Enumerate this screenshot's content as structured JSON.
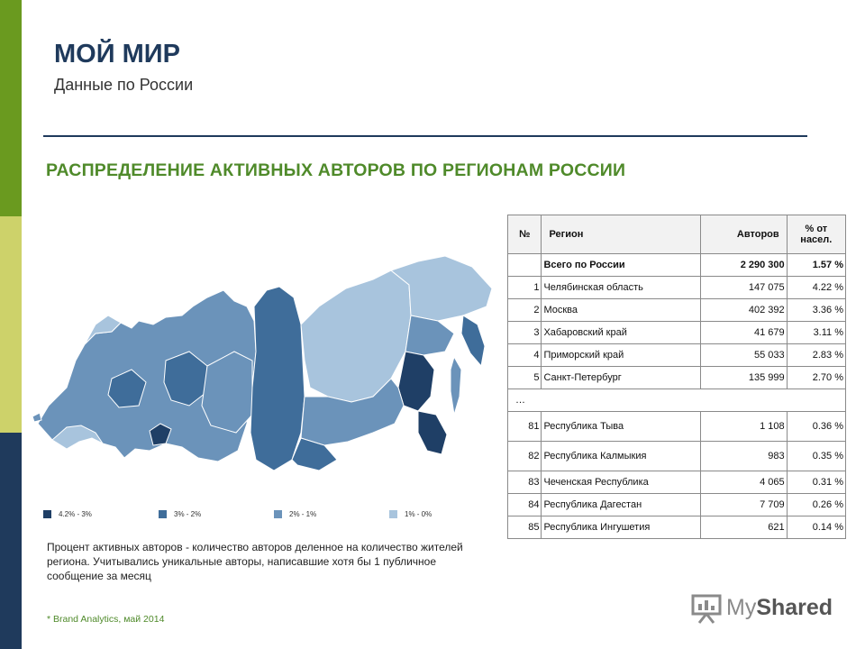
{
  "header": {
    "title": "МОЙ МИР",
    "subtitle": "Данные по России",
    "section_title": "РАСПРЕДЕЛЕНИЕ АКТИВНЫХ АВТОРОВ ПО РЕГИОНАМ РОССИИ"
  },
  "colors": {
    "accent_green": "#6a9a1f",
    "navy": "#1f3a5c",
    "shade_1": "#1f3f66",
    "shade_2": "#3f6d9a",
    "shade_3": "#6b93ba",
    "shade_4": "#a8c4dd"
  },
  "legend": [
    {
      "label": "4.2% - 3%",
      "color": "#1f3f66"
    },
    {
      "label": "3% - 2%",
      "color": "#3f6d9a"
    },
    {
      "label": "2% - 1%",
      "color": "#6b93ba"
    },
    {
      "label": "1% - 0%",
      "color": "#a8c4dd"
    }
  ],
  "table": {
    "headers": {
      "num": "№",
      "region": "Регион",
      "authors": "Авторов",
      "percent": "% от насел."
    },
    "total": {
      "num": "",
      "region": "Всего по России",
      "authors": "2 290 300",
      "percent": "1.57 %"
    },
    "top_rows": [
      {
        "num": "1",
        "region": "Челябинская область",
        "authors": "147 075",
        "percent": "4.22 %"
      },
      {
        "num": "2",
        "region": "Москва",
        "authors": "402 392",
        "percent": "3.36 %"
      },
      {
        "num": "3",
        "region": "Хабаровский край",
        "authors": "41 679",
        "percent": "3.11 %"
      },
      {
        "num": "4",
        "region": "Приморский край",
        "authors": "55 033",
        "percent": "2.83 %"
      },
      {
        "num": "5",
        "region": "Санкт-Петербург",
        "authors": "135 999",
        "percent": "2.70 %"
      }
    ],
    "ellipsis": "…",
    "bottom_rows": [
      {
        "num": "81",
        "region": "Республика Тыва",
        "authors": "1 108",
        "percent": "0.36 %"
      },
      {
        "num": "82",
        "region": "Республика Калмыкия",
        "authors": "983",
        "percent": "0.35 %"
      },
      {
        "num": "83",
        "region": "Чеченская Республика",
        "authors": "4 065",
        "percent": "0.31 %"
      },
      {
        "num": "84",
        "region": "Республика Дагестан",
        "authors": "7 709",
        "percent": "0.26 %"
      },
      {
        "num": "85",
        "region": "Республика Ингушетия",
        "authors": "621",
        "percent": "0.14 %"
      }
    ]
  },
  "note": "Процент активных авторов - количество авторов деленное на количество жителей региона. Учитывались уникальные авторы, написавшие хотя бы 1 публичное сообщение за месяц",
  "source": "* Brand Analytics, май 2014",
  "watermark": {
    "text_light": "My",
    "text_bold": "Shared"
  }
}
